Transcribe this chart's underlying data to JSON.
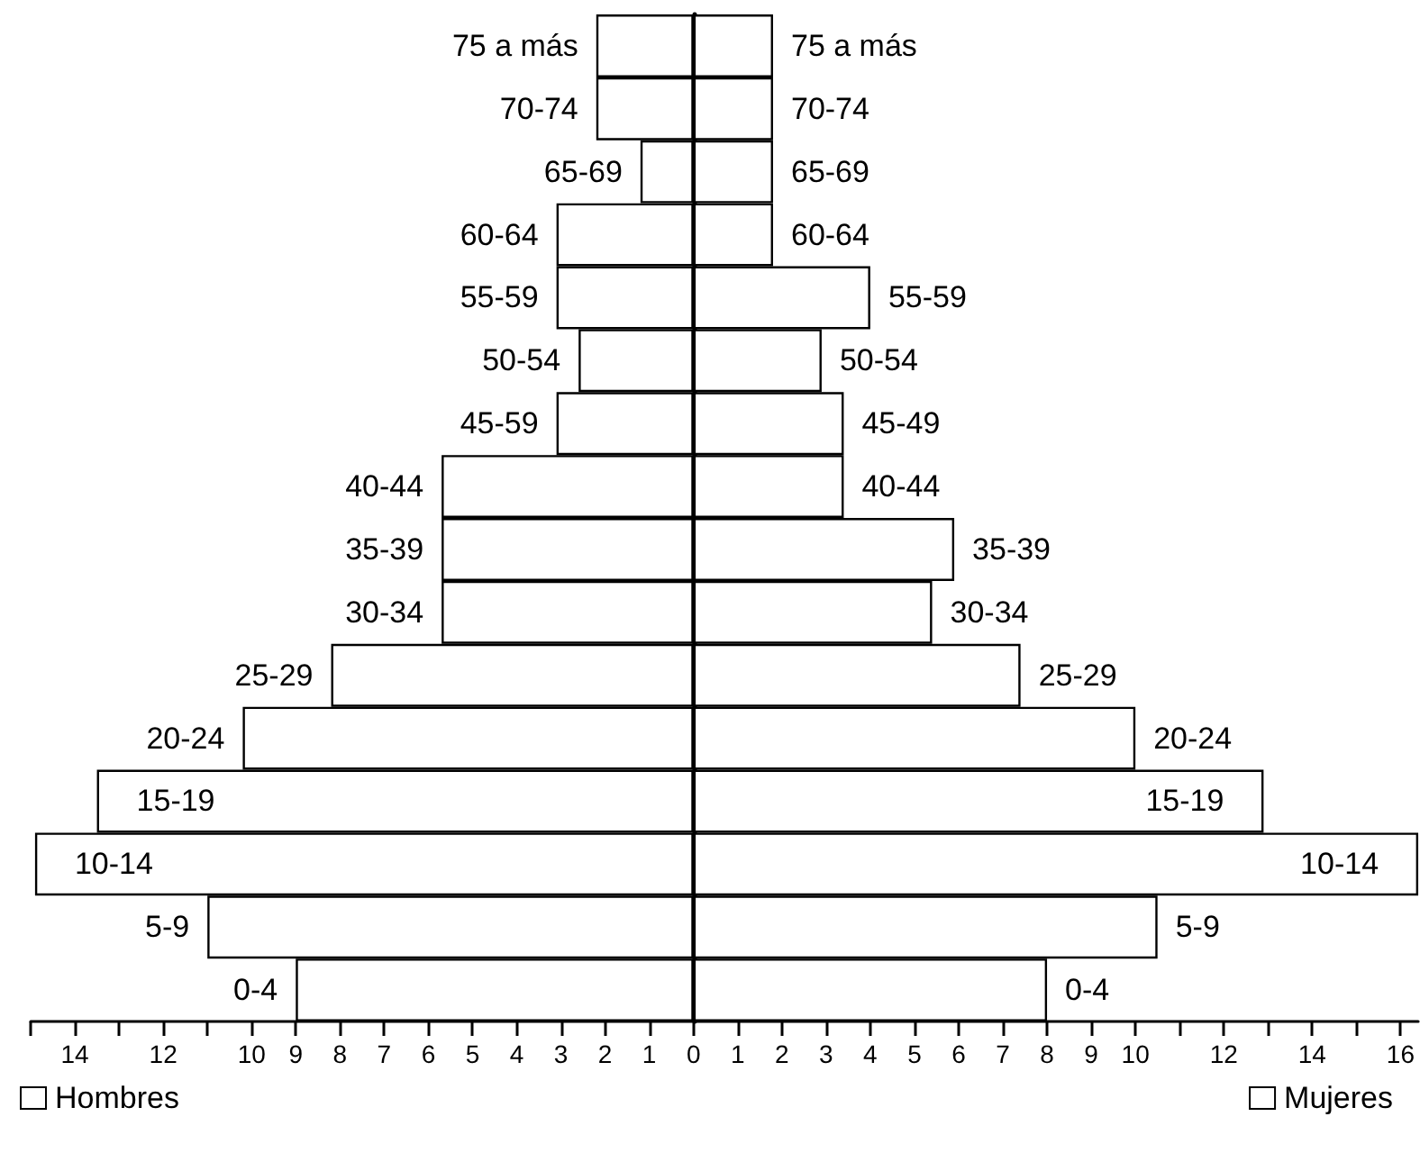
{
  "chart_data": {
    "type": "bar",
    "orientation": "horizontal",
    "categories": [
      "75 a más",
      "70-74",
      "65-69",
      "60-64",
      "55-59",
      "50-54",
      "45-59",
      "40-44",
      "35-39",
      "30-34",
      "25-29",
      "20-24",
      "15-19",
      "10-14",
      "5-9",
      "0-4"
    ],
    "y2_categories": [
      "75 a más",
      "70-74",
      "65-69",
      "60-64",
      "55-59",
      "50-54",
      "45-49",
      "40-44",
      "35-39",
      "30-34",
      "25-29",
      "20-24",
      "15-19",
      "10-14",
      "5-9",
      "0-4"
    ],
    "series": [
      {
        "name": "Hombres",
        "color": "#ffffff",
        "values": [
          -2.2,
          -2.2,
          -1.2,
          -3.1,
          -3.1,
          -2.6,
          -3.1,
          -5.7,
          -5.7,
          -5.7,
          -8.2,
          -10.2,
          -13.5,
          -14.9,
          -11.0,
          -9.0
        ]
      },
      {
        "name": "Mujeres",
        "color": "#ffffff",
        "values": [
          1.8,
          1.8,
          1.8,
          1.8,
          4.0,
          2.9,
          3.4,
          3.4,
          5.9,
          5.4,
          7.4,
          10.0,
          12.9,
          16.4,
          10.5,
          8.0
        ]
      }
    ],
    "xlim": [
      -15,
      16.4
    ],
    "xticks": [
      {
        "value": -15,
        "label": null
      },
      {
        "value": -14,
        "label": "14"
      },
      {
        "value": -13,
        "label": null
      },
      {
        "value": -12,
        "label": "12"
      },
      {
        "value": -11,
        "label": null
      },
      {
        "value": -10,
        "label": "10"
      },
      {
        "value": -9,
        "label": "9"
      },
      {
        "value": -8,
        "label": "8"
      },
      {
        "value": -7,
        "label": "7"
      },
      {
        "value": -6,
        "label": "6"
      },
      {
        "value": -5,
        "label": "5"
      },
      {
        "value": -4,
        "label": "4"
      },
      {
        "value": -3,
        "label": "3"
      },
      {
        "value": -2,
        "label": "2"
      },
      {
        "value": -1,
        "label": "1"
      },
      0,
      1,
      2,
      3,
      4,
      5,
      6,
      7,
      8,
      9,
      10,
      {
        "value": 11,
        "label": null
      },
      12,
      {
        "value": 13,
        "label": null
      },
      14,
      {
        "value": 15,
        "label": null
      },
      16
    ],
    "stacked": true,
    "legend": "bottom"
  }
}
